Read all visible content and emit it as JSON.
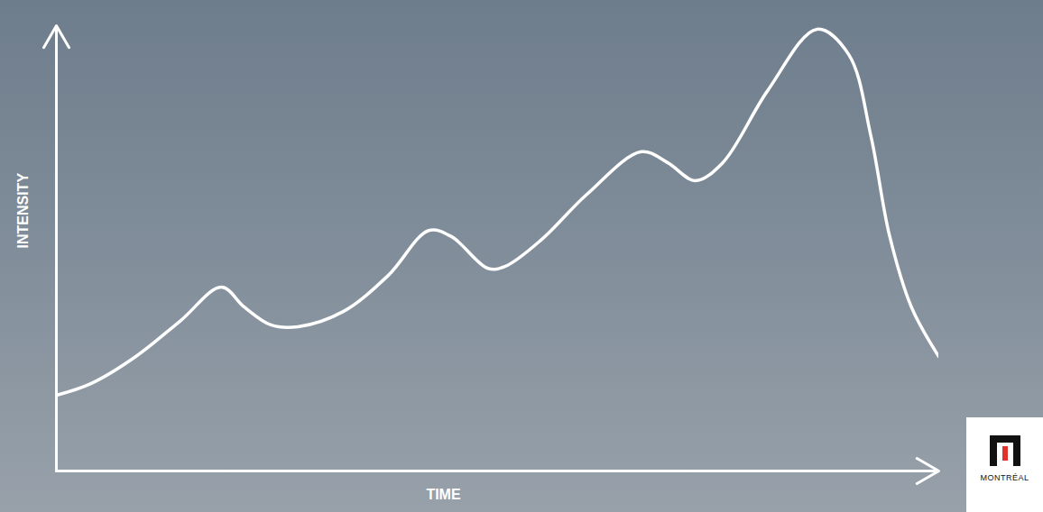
{
  "chart_data": {
    "type": "line",
    "x_label": "TIME",
    "y_label": "INTENSITY",
    "x": [
      0,
      3.9,
      9.0,
      14.1,
      18.7,
      21.3,
      24.3,
      27.4,
      32.5,
      37.6,
      42.2,
      44.8,
      48.9,
      50.9,
      55.0,
      60.1,
      66.3,
      69.3,
      72.4,
      75.5,
      80.6,
      86.2,
      89.8,
      92.3,
      94.4,
      96.9,
      100
    ],
    "values": [
      17.0,
      19.6,
      25.7,
      33.8,
      41.3,
      36.8,
      32.8,
      32.4,
      35.8,
      43.9,
      54.0,
      52.6,
      45.5,
      46.0,
      52.0,
      62.1,
      71.7,
      69.2,
      65.2,
      69.2,
      85.4,
      99.2,
      93.5,
      75.3,
      53.0,
      36.8,
      25.7
    ],
    "color": "#ffffff",
    "xlim": [
      0,
      100
    ],
    "ylim": [
      0,
      100
    ],
    "xticks": [],
    "yticks": [],
    "tick_labels": false,
    "grid": false,
    "annotations": [
      "MONTRÉAL"
    ]
  }
}
